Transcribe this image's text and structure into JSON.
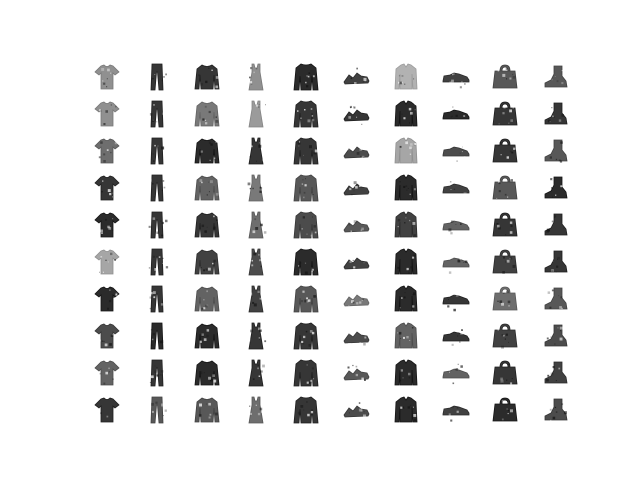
{
  "figure": {
    "rows": 10,
    "columns": 10,
    "column_classes": [
      "t-shirt",
      "trousers",
      "pullover",
      "dress",
      "coat",
      "sandal",
      "shirt",
      "sneaker",
      "bag",
      "ankle-boot"
    ],
    "ink_color": "#141414",
    "background_color": "#ffffff",
    "tones": [
      [
        0.45,
        0.85,
        0.85,
        0.45,
        0.9,
        0.8,
        0.3,
        0.8,
        0.7,
        0.7
      ],
      [
        0.45,
        0.85,
        0.55,
        0.4,
        0.85,
        0.85,
        0.9,
        0.9,
        0.85,
        0.85
      ],
      [
        0.6,
        0.85,
        0.9,
        0.85,
        0.85,
        0.75,
        0.35,
        0.75,
        0.85,
        0.7
      ],
      [
        0.85,
        0.85,
        0.65,
        0.55,
        0.7,
        0.8,
        0.9,
        0.8,
        0.7,
        0.9
      ],
      [
        0.9,
        0.85,
        0.85,
        0.6,
        0.75,
        0.7,
        0.8,
        0.65,
        0.85,
        0.85
      ],
      [
        0.35,
        0.85,
        0.8,
        0.75,
        0.9,
        0.8,
        0.9,
        0.65,
        0.8,
        0.85
      ],
      [
        0.9,
        0.85,
        0.65,
        0.8,
        0.7,
        0.55,
        0.9,
        0.85,
        0.6,
        0.7
      ],
      [
        0.75,
        0.9,
        0.9,
        0.85,
        0.85,
        0.75,
        0.65,
        0.85,
        0.8,
        0.75
      ],
      [
        0.65,
        0.85,
        0.9,
        0.85,
        0.85,
        0.7,
        0.9,
        0.65,
        0.85,
        0.8
      ],
      [
        0.85,
        0.7,
        0.7,
        0.6,
        0.85,
        0.75,
        0.9,
        0.8,
        0.9,
        0.75
      ]
    ]
  }
}
